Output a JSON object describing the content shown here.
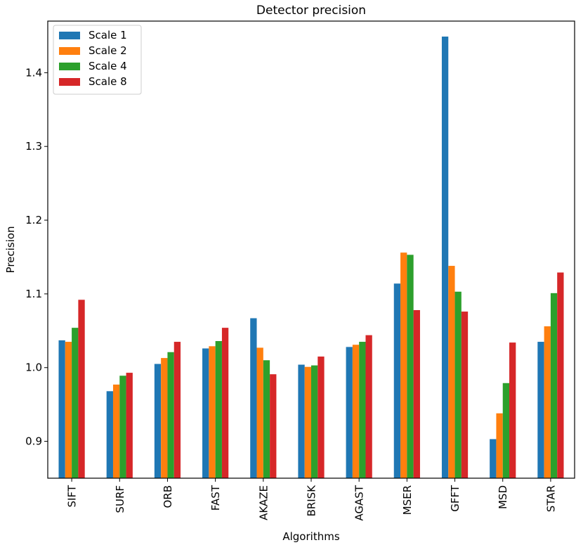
{
  "chart_data": {
    "type": "bar",
    "title": "Detector precision",
    "xlabel": "Algorithms",
    "ylabel": "Precision",
    "categories": [
      "SIFT",
      "SURF",
      "ORB",
      "FAST",
      "AKAZE",
      "BRISK",
      "AGAST",
      "MSER",
      "GFFT",
      "MSD",
      "STAR"
    ],
    "ylim": [
      0.85,
      1.47
    ],
    "yticks": [
      0.9,
      1.0,
      1.1,
      1.2,
      1.3,
      1.4
    ],
    "ytick_labels": [
      "0.9",
      "1.0",
      "1.1",
      "1.2",
      "1.3",
      "1.4"
    ],
    "grid": false,
    "legend_position": "top-left",
    "series": [
      {
        "name": "Scale 1",
        "color": "#1f77b4",
        "values": [
          1.037,
          0.968,
          1.005,
          1.026,
          1.067,
          1.004,
          1.028,
          1.114,
          1.449,
          0.903,
          1.035
        ]
      },
      {
        "name": "Scale 2",
        "color": "#ff7f0e",
        "values": [
          1.035,
          0.977,
          1.013,
          1.029,
          1.027,
          1.001,
          1.031,
          1.156,
          1.138,
          0.938,
          1.056
        ]
      },
      {
        "name": "Scale 4",
        "color": "#2ca02c",
        "values": [
          1.054,
          0.989,
          1.021,
          1.036,
          1.01,
          1.003,
          1.035,
          1.153,
          1.103,
          0.979,
          1.101
        ]
      },
      {
        "name": "Scale 8",
        "color": "#d62728",
        "values": [
          1.092,
          0.993,
          1.035,
          1.054,
          0.991,
          1.015,
          1.044,
          1.078,
          1.076,
          1.034,
          1.129
        ]
      }
    ]
  }
}
